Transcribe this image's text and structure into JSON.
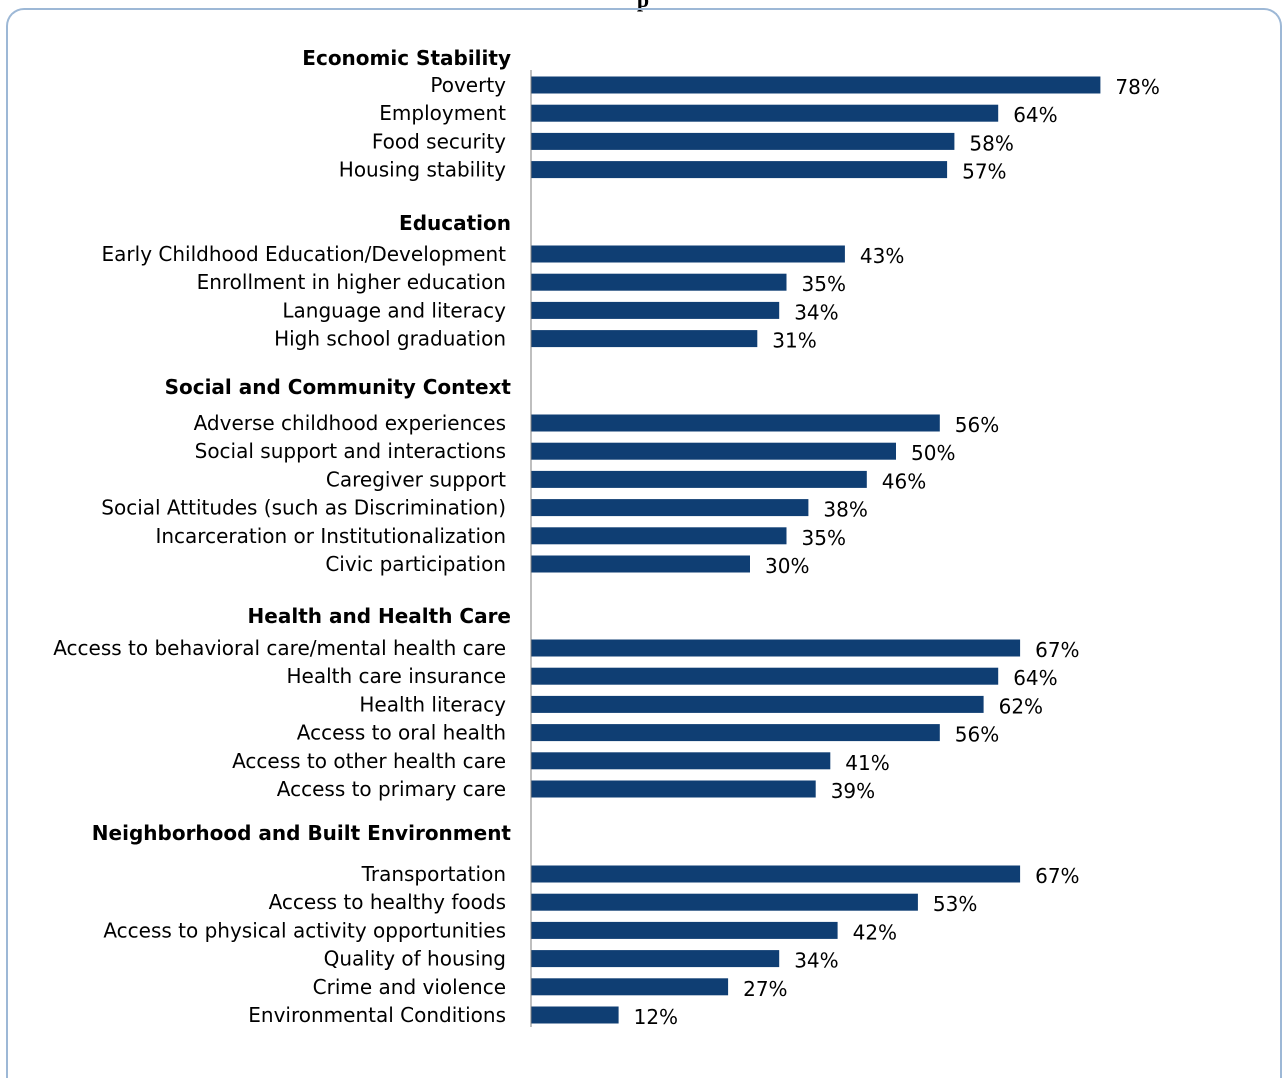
{
  "header": {
    "title_fragment": "p"
  },
  "chart_data": {
    "type": "bar",
    "orientation": "horizontal",
    "value_format": "percent",
    "bar_color": "#0f3e73",
    "xlim": [
      0,
      100
    ],
    "groups": [
      {
        "name": "Economic Stability",
        "items": [
          {
            "label": "Poverty",
            "value": 78
          },
          {
            "label": "Employment",
            "value": 64
          },
          {
            "label": "Food security",
            "value": 58
          },
          {
            "label": "Housing stability",
            "value": 57
          }
        ]
      },
      {
        "name": "Education",
        "items": [
          {
            "label": "Early Childhood Education/Development",
            "value": 43
          },
          {
            "label": "Enrollment in higher education",
            "value": 35
          },
          {
            "label": "Language and literacy",
            "value": 34
          },
          {
            "label": "High school graduation",
            "value": 31
          }
        ]
      },
      {
        "name": "Social and Community Context",
        "items": [
          {
            "label": "Adverse childhood experiences",
            "value": 56
          },
          {
            "label": "Social support and interactions",
            "value": 50
          },
          {
            "label": "Caregiver support",
            "value": 46
          },
          {
            "label": "Social Attitudes (such as Discrimination)",
            "value": 38
          },
          {
            "label": "Incarceration or Institutionalization",
            "value": 35
          },
          {
            "label": "Civic  participation",
            "value": 30
          }
        ]
      },
      {
        "name": "Health and Health Care",
        "items": [
          {
            "label": "Access to behavioral care/mental health care",
            "value": 67
          },
          {
            "label": "Health care insurance",
            "value": 64
          },
          {
            "label": "Health literacy",
            "value": 62
          },
          {
            "label": "Access to oral health",
            "value": 56
          },
          {
            "label": "Access to other health care",
            "value": 41
          },
          {
            "label": "Access to primary care",
            "value": 39
          }
        ]
      },
      {
        "name": "Neighborhood and Built Environment",
        "items": [
          {
            "label": "Transportation",
            "value": 67
          },
          {
            "label": "Access to healthy foods",
            "value": 53
          },
          {
            "label": "Access to physical activity opportunities",
            "value": 42
          },
          {
            "label": "Quality of housing",
            "value": 34
          },
          {
            "label": "Crime and violence",
            "value": 27
          },
          {
            "label": "Environmental Conditions",
            "value": 12
          }
        ]
      }
    ]
  }
}
